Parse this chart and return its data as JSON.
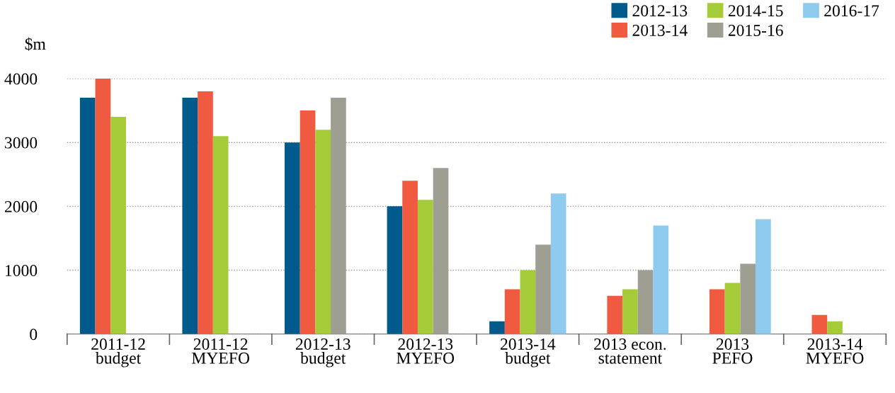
{
  "chart_data": {
    "type": "bar",
    "ylabel": "$m",
    "categories": [
      "2011-12\nbudget",
      "2011-12\nMYEFO",
      "2012-13\nbudget",
      "2012-13\nMYEFO",
      "2013-14\nbudget",
      "2013 econ.\nstatement",
      "2013\nPEFO",
      "2013-14\nMYEFO"
    ],
    "series": [
      {
        "name": "2012-13",
        "color": "#005a8c",
        "values": [
          3700,
          3700,
          3000,
          2000,
          200,
          null,
          null,
          null
        ]
      },
      {
        "name": "2013-14",
        "color": "#ef5a40",
        "values": [
          4000,
          3800,
          3500,
          2400,
          700,
          600,
          700,
          300
        ]
      },
      {
        "name": "2014-15",
        "color": "#a6cb38",
        "values": [
          3400,
          3100,
          3200,
          2100,
          1000,
          700,
          800,
          200
        ]
      },
      {
        "name": "2015-16",
        "color": "#9e9e92",
        "values": [
          null,
          null,
          3700,
          2600,
          1400,
          1000,
          1100,
          null
        ]
      },
      {
        "name": "2016-17",
        "color": "#8fcbee",
        "values": [
          null,
          null,
          null,
          null,
          2200,
          1700,
          1800,
          null
        ]
      }
    ],
    "ylim": [
      0,
      4000
    ],
    "yticks": [
      0,
      1000,
      2000,
      3000,
      4000
    ],
    "grid": "y",
    "legend": "top right"
  }
}
